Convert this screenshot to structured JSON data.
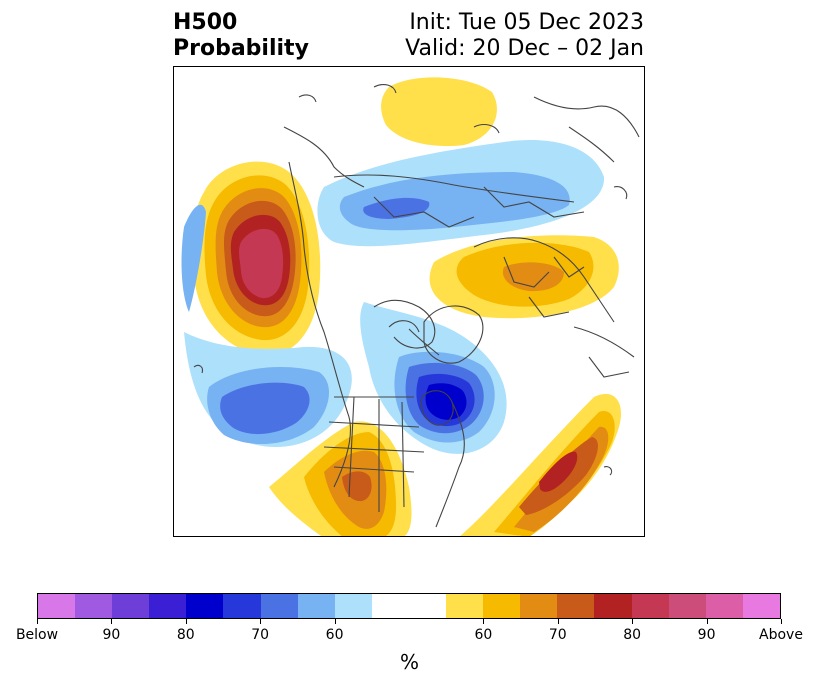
{
  "title": {
    "left_line1": "H500",
    "left_line2": "Probability",
    "right_line1": "Init: Tue 05 Dec 2023",
    "right_line2": "Valid: 20 Dec – 02 Jan"
  },
  "colorbar": {
    "units": "%",
    "colors": [
      "#d777e8",
      "#a05ae2",
      "#6e3fd8",
      "#3a1fd5",
      "#0000cc",
      "#2638d9",
      "#4b72e3",
      "#77b2f2",
      "#ade0fb",
      "#ffffff",
      "#ffffff",
      "#ffe04b",
      "#f6ba00",
      "#e38c13",
      "#c85a1a",
      "#b22222",
      "#c43853",
      "#cc4d7a",
      "#dc5ea6",
      "#e879e0"
    ],
    "tick_labels": [
      "Below",
      "90",
      "80",
      "70",
      "60",
      "60",
      "70",
      "80",
      "90",
      "Above"
    ]
  },
  "map_legend_colors": {
    "below_light": "#ade0fb",
    "below_mid": "#77b2f2",
    "below_med": "#4b72e3",
    "below_strong": "#2638d9",
    "below_deep": "#0000cc",
    "above_light": "#ffe04b",
    "above_mid": "#f6ba00",
    "above_med": "#e38c13",
    "above_strong": "#c85a1a",
    "above_deep": "#b22222",
    "above_max": "#c43853"
  }
}
